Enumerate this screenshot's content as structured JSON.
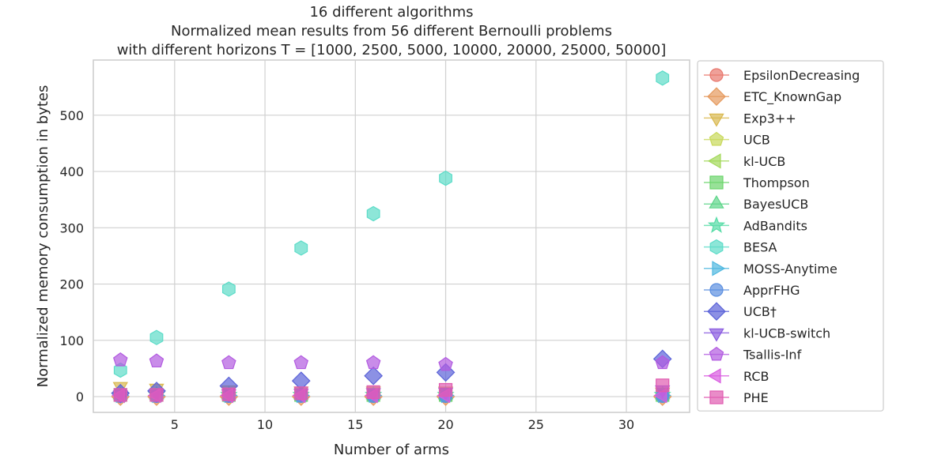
{
  "chart_data": {
    "type": "scatter",
    "title_lines": [
      "16 different algorithms",
      "Normalized mean results from 56 different Bernoulli problems",
      "with different horizons T = [1000, 2500, 5000, 10000, 20000, 25000, 50000]"
    ],
    "xlabel": "Number of arms",
    "ylabel": "Normalized memory consumption in bytes",
    "xlim": [
      0.5,
      33.5
    ],
    "ylim": [
      -28,
      598
    ],
    "xticks": [
      5,
      10,
      15,
      20,
      25,
      30
    ],
    "yticks": [
      0,
      100,
      200,
      300,
      400,
      500
    ],
    "grid": true,
    "legend_position": "outside right",
    "series": [
      {
        "name": "EpsilonDecreasing",
        "marker": "circle",
        "color": "#e8776d",
        "points": [
          [
            2,
            2
          ],
          [
            4,
            2
          ],
          [
            8,
            1
          ],
          [
            12,
            2
          ],
          [
            16,
            2
          ],
          [
            20,
            2
          ],
          [
            32,
            2
          ]
        ]
      },
      {
        "name": "ETC_KnownGap",
        "marker": "diamond",
        "color": "#e69a5e",
        "points": [
          [
            2,
            0
          ],
          [
            4,
            0
          ],
          [
            8,
            0
          ],
          [
            12,
            0
          ],
          [
            16,
            0
          ],
          [
            20,
            0
          ],
          [
            32,
            0
          ]
        ]
      },
      {
        "name": "Exp3++",
        "marker": "triangle-down",
        "color": "#d9b84e",
        "points": [
          [
            2,
            18
          ],
          [
            4,
            15
          ],
          [
            8,
            12
          ],
          [
            12,
            10
          ],
          [
            16,
            10
          ],
          [
            20,
            10
          ],
          [
            32,
            8
          ]
        ]
      },
      {
        "name": "UCB",
        "marker": "pentagon",
        "color": "#c8d85a",
        "points": [
          [
            2,
            2
          ],
          [
            4,
            2
          ],
          [
            8,
            2
          ],
          [
            12,
            2
          ],
          [
            16,
            2
          ],
          [
            20,
            2
          ],
          [
            32,
            2
          ]
        ]
      },
      {
        "name": "kl-UCB",
        "marker": "triangle-left",
        "color": "#a3d85a",
        "points": [
          [
            2,
            2
          ],
          [
            4,
            2
          ],
          [
            8,
            2
          ],
          [
            12,
            2
          ],
          [
            16,
            2
          ],
          [
            20,
            2
          ],
          [
            32,
            2
          ]
        ]
      },
      {
        "name": "Thompson",
        "marker": "square",
        "color": "#6cd46c",
        "points": [
          [
            2,
            3
          ],
          [
            4,
            3
          ],
          [
            8,
            3
          ],
          [
            12,
            3
          ],
          [
            16,
            3
          ],
          [
            20,
            3
          ],
          [
            32,
            3
          ]
        ]
      },
      {
        "name": "BayesUCB",
        "marker": "triangle-up",
        "color": "#5ed68a",
        "points": [
          [
            2,
            3
          ],
          [
            4,
            3
          ],
          [
            8,
            3
          ],
          [
            12,
            3
          ],
          [
            16,
            3
          ],
          [
            20,
            3
          ],
          [
            32,
            3
          ]
        ]
      },
      {
        "name": "AdBandits",
        "marker": "star",
        "color": "#56dca6",
        "points": [
          [
            2,
            3
          ],
          [
            4,
            3
          ],
          [
            8,
            3
          ],
          [
            12,
            3
          ],
          [
            16,
            3
          ],
          [
            20,
            3
          ],
          [
            32,
            3
          ]
        ]
      },
      {
        "name": "BESA",
        "marker": "hexagon",
        "color": "#5cdcc8",
        "points": [
          [
            2,
            47
          ],
          [
            4,
            105
          ],
          [
            8,
            191
          ],
          [
            12,
            264
          ],
          [
            16,
            325
          ],
          [
            20,
            388
          ],
          [
            32,
            566
          ]
        ]
      },
      {
        "name": "MOSS-Anytime",
        "marker": "triangle-right",
        "color": "#4fb8e0",
        "points": [
          [
            2,
            2
          ],
          [
            4,
            2
          ],
          [
            8,
            2
          ],
          [
            12,
            2
          ],
          [
            16,
            2
          ],
          [
            20,
            2
          ],
          [
            32,
            2
          ]
        ]
      },
      {
        "name": "ApprFHG",
        "marker": "circle",
        "color": "#5b8fe0",
        "points": [
          [
            2,
            1
          ],
          [
            4,
            1
          ],
          [
            8,
            1
          ],
          [
            12,
            1
          ],
          [
            16,
            1
          ],
          [
            20,
            1
          ],
          [
            32,
            1
          ]
        ]
      },
      {
        "name": "UCB†",
        "marker": "diamond",
        "color": "#5b63d8",
        "points": [
          [
            2,
            6
          ],
          [
            4,
            10
          ],
          [
            8,
            19
          ],
          [
            12,
            28
          ],
          [
            16,
            37
          ],
          [
            20,
            43
          ],
          [
            32,
            67
          ]
        ]
      },
      {
        "name": "kl-UCB-switch",
        "marker": "triangle-down",
        "color": "#8a5be0",
        "points": [
          [
            2,
            3
          ],
          [
            4,
            4
          ],
          [
            8,
            5
          ],
          [
            12,
            6
          ],
          [
            16,
            7
          ],
          [
            20,
            8
          ],
          [
            32,
            12
          ]
        ]
      },
      {
        "name": "Tsallis-Inf",
        "marker": "pentagon",
        "color": "#b25be0",
        "points": [
          [
            2,
            65
          ],
          [
            4,
            63
          ],
          [
            8,
            60
          ],
          [
            12,
            60
          ],
          [
            16,
            60
          ],
          [
            20,
            57
          ],
          [
            32,
            60
          ]
        ]
      },
      {
        "name": "RCB",
        "marker": "triangle-left",
        "color": "#d95be0",
        "points": [
          [
            2,
            2
          ],
          [
            4,
            2
          ],
          [
            8,
            2
          ],
          [
            12,
            2
          ],
          [
            16,
            2
          ],
          [
            20,
            2
          ],
          [
            32,
            2
          ]
        ]
      },
      {
        "name": "PHE",
        "marker": "square",
        "color": "#e05bb0",
        "points": [
          [
            2,
            3
          ],
          [
            4,
            3
          ],
          [
            8,
            4
          ],
          [
            12,
            6
          ],
          [
            16,
            8
          ],
          [
            20,
            12
          ],
          [
            32,
            20
          ]
        ]
      }
    ]
  }
}
